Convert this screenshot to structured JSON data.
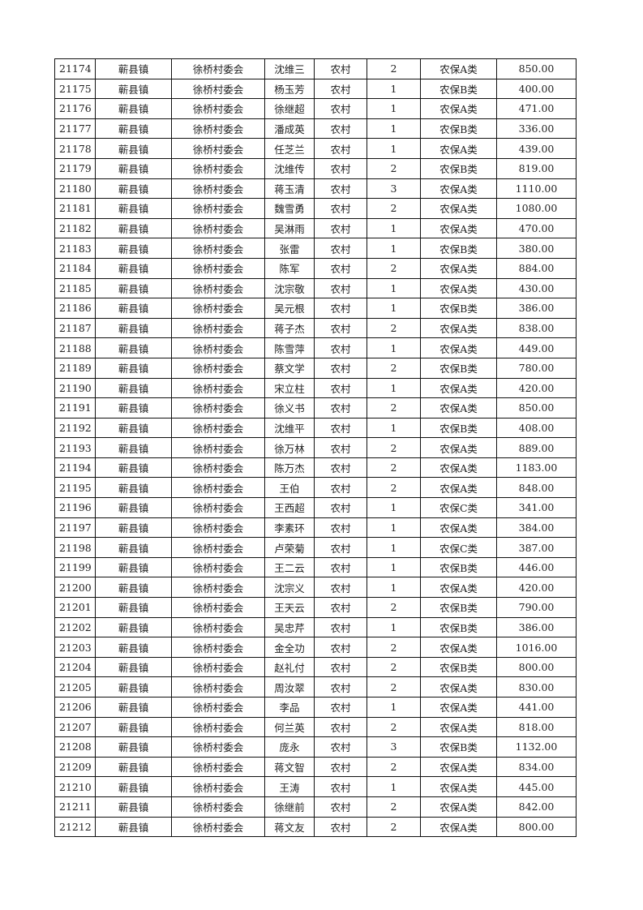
{
  "rows": [
    [
      "21174",
      "蕲县镇",
      "徐桥村委会",
      "沈维三",
      "农村",
      "2",
      "农保A类",
      "850.00"
    ],
    [
      "21175",
      "蕲县镇",
      "徐桥村委会",
      "杨玉芳",
      "农村",
      "1",
      "农保B类",
      "400.00"
    ],
    [
      "21176",
      "蕲县镇",
      "徐桥村委会",
      "徐继超",
      "农村",
      "1",
      "农保A类",
      "471.00"
    ],
    [
      "21177",
      "蕲县镇",
      "徐桥村委会",
      "潘成英",
      "农村",
      "1",
      "农保B类",
      "336.00"
    ],
    [
      "21178",
      "蕲县镇",
      "徐桥村委会",
      "任芝兰",
      "农村",
      "1",
      "农保A类",
      "439.00"
    ],
    [
      "21179",
      "蕲县镇",
      "徐桥村委会",
      "沈维传",
      "农村",
      "2",
      "农保B类",
      "819.00"
    ],
    [
      "21180",
      "蕲县镇",
      "徐桥村委会",
      "蒋玉清",
      "农村",
      "3",
      "农保A类",
      "1110.00"
    ],
    [
      "21181",
      "蕲县镇",
      "徐桥村委会",
      "魏雪勇",
      "农村",
      "2",
      "农保A类",
      "1080.00"
    ],
    [
      "21182",
      "蕲县镇",
      "徐桥村委会",
      "吴淋雨",
      "农村",
      "1",
      "农保A类",
      "470.00"
    ],
    [
      "21183",
      "蕲县镇",
      "徐桥村委会",
      "张雷",
      "农村",
      "1",
      "农保B类",
      "380.00"
    ],
    [
      "21184",
      "蕲县镇",
      "徐桥村委会",
      "陈军",
      "农村",
      "2",
      "农保A类",
      "884.00"
    ],
    [
      "21185",
      "蕲县镇",
      "徐桥村委会",
      "沈宗敬",
      "农村",
      "1",
      "农保A类",
      "430.00"
    ],
    [
      "21186",
      "蕲县镇",
      "徐桥村委会",
      "吴元根",
      "农村",
      "1",
      "农保B类",
      "386.00"
    ],
    [
      "21187",
      "蕲县镇",
      "徐桥村委会",
      "蒋子杰",
      "农村",
      "2",
      "农保A类",
      "838.00"
    ],
    [
      "21188",
      "蕲县镇",
      "徐桥村委会",
      "陈雪萍",
      "农村",
      "1",
      "农保A类",
      "449.00"
    ],
    [
      "21189",
      "蕲县镇",
      "徐桥村委会",
      "蔡文学",
      "农村",
      "2",
      "农保B类",
      "780.00"
    ],
    [
      "21190",
      "蕲县镇",
      "徐桥村委会",
      "宋立柱",
      "农村",
      "1",
      "农保A类",
      "420.00"
    ],
    [
      "21191",
      "蕲县镇",
      "徐桥村委会",
      "徐义书",
      "农村",
      "2",
      "农保A类",
      "850.00"
    ],
    [
      "21192",
      "蕲县镇",
      "徐桥村委会",
      "沈维平",
      "农村",
      "1",
      "农保B类",
      "408.00"
    ],
    [
      "21193",
      "蕲县镇",
      "徐桥村委会",
      "徐万林",
      "农村",
      "2",
      "农保A类",
      "889.00"
    ],
    [
      "21194",
      "蕲县镇",
      "徐桥村委会",
      "陈万杰",
      "农村",
      "2",
      "农保A类",
      "1183.00"
    ],
    [
      "21195",
      "蕲县镇",
      "徐桥村委会",
      "王伯",
      "农村",
      "2",
      "农保A类",
      "848.00"
    ],
    [
      "21196",
      "蕲县镇",
      "徐桥村委会",
      "王西超",
      "农村",
      "1",
      "农保C类",
      "341.00"
    ],
    [
      "21197",
      "蕲县镇",
      "徐桥村委会",
      "李素环",
      "农村",
      "1",
      "农保A类",
      "384.00"
    ],
    [
      "21198",
      "蕲县镇",
      "徐桥村委会",
      "卢荣菊",
      "农村",
      "1",
      "农保C类",
      "387.00"
    ],
    [
      "21199",
      "蕲县镇",
      "徐桥村委会",
      "王二云",
      "农村",
      "1",
      "农保B类",
      "446.00"
    ],
    [
      "21200",
      "蕲县镇",
      "徐桥村委会",
      "沈宗义",
      "农村",
      "1",
      "农保A类",
      "420.00"
    ],
    [
      "21201",
      "蕲县镇",
      "徐桥村委会",
      "王天云",
      "农村",
      "2",
      "农保B类",
      "790.00"
    ],
    [
      "21202",
      "蕲县镇",
      "徐桥村委会",
      "吴忠芹",
      "农村",
      "1",
      "农保B类",
      "386.00"
    ],
    [
      "21203",
      "蕲县镇",
      "徐桥村委会",
      "金全功",
      "农村",
      "2",
      "农保A类",
      "1016.00"
    ],
    [
      "21204",
      "蕲县镇",
      "徐桥村委会",
      "赵礼付",
      "农村",
      "2",
      "农保B类",
      "800.00"
    ],
    [
      "21205",
      "蕲县镇",
      "徐桥村委会",
      "周汝翠",
      "农村",
      "2",
      "农保A类",
      "830.00"
    ],
    [
      "21206",
      "蕲县镇",
      "徐桥村委会",
      "李品",
      "农村",
      "1",
      "农保A类",
      "441.00"
    ],
    [
      "21207",
      "蕲县镇",
      "徐桥村委会",
      "何兰英",
      "农村",
      "2",
      "农保A类",
      "818.00"
    ],
    [
      "21208",
      "蕲县镇",
      "徐桥村委会",
      "庞永",
      "农村",
      "3",
      "农保B类",
      "1132.00"
    ],
    [
      "21209",
      "蕲县镇",
      "徐桥村委会",
      "蒋文智",
      "农村",
      "2",
      "农保A类",
      "834.00"
    ],
    [
      "21210",
      "蕲县镇",
      "徐桥村委会",
      "王涛",
      "农村",
      "1",
      "农保A类",
      "445.00"
    ],
    [
      "21211",
      "蕲县镇",
      "徐桥村委会",
      "徐继前",
      "农村",
      "2",
      "农保A类",
      "842.00"
    ],
    [
      "21212",
      "蕲县镇",
      "徐桥村委会",
      "蒋文友",
      "农村",
      "2",
      "农保A类",
      "800.00"
    ]
  ]
}
